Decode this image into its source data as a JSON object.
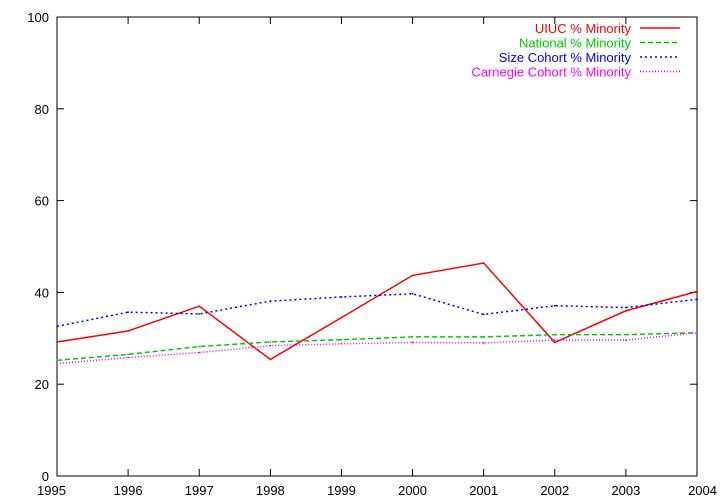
{
  "chart_data": {
    "type": "line",
    "title": "",
    "xlabel": "",
    "ylabel": "",
    "x": [
      1995,
      1996,
      1997,
      1998,
      1999,
      2000,
      2001,
      2002,
      2003,
      2004
    ],
    "xlim": [
      1995,
      2004
    ],
    "ylim": [
      0,
      100
    ],
    "x_ticks": [
      "1995",
      "1996",
      "1997",
      "1998",
      "1999",
      "2000",
      "2001",
      "2002",
      "2003",
      "2004"
    ],
    "y_ticks": [
      "0",
      "20",
      "40",
      "60",
      "80",
      "100"
    ],
    "grid": false,
    "legend_position": "top-right",
    "series": [
      {
        "name": "UIUC % Minority",
        "color": "#ff0000",
        "dash": "solid",
        "values": [
          29.2,
          31.6,
          37.0,
          25.4,
          34.5,
          43.7,
          46.4,
          29.1,
          36.0,
          40.2
        ]
      },
      {
        "name": "National % Minority",
        "color": "#00cc00",
        "dash": "dashed",
        "values": [
          25.2,
          26.5,
          28.2,
          29.2,
          29.7,
          30.3,
          30.3,
          30.8,
          30.8,
          31.2
        ]
      },
      {
        "name": "Size Cohort % Minority",
        "color": "#0000ff",
        "dash": "dotted",
        "values": [
          32.6,
          35.7,
          35.3,
          38.1,
          39.0,
          39.7,
          35.2,
          37.1,
          36.7,
          38.5
        ]
      },
      {
        "name": "Carnegie Cohort % Minority",
        "color": "#ff00ff",
        "dash": "finedot",
        "values": [
          24.5,
          25.8,
          26.9,
          28.4,
          28.8,
          29.1,
          29.0,
          29.6,
          29.6,
          31.2
        ]
      }
    ]
  }
}
